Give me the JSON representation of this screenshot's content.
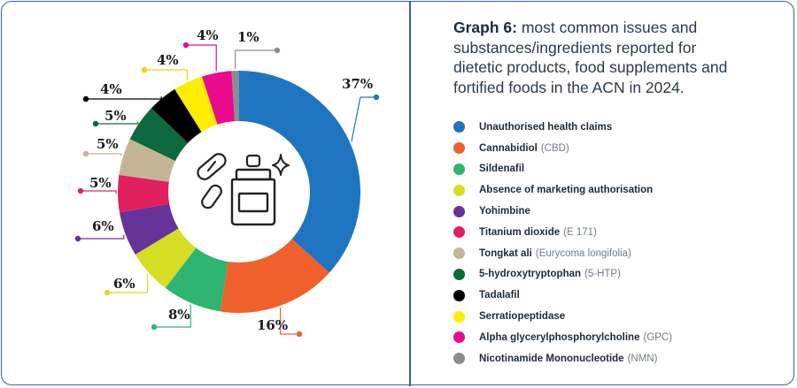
{
  "title": {
    "bold": "Graph 6:",
    "rest": "most common issues and substances/ingredients reported for dietetic products, food supplements and fortified foods in the ACN in 2024."
  },
  "icons": [
    "pills-icon",
    "jar-icon",
    "sparkle-icon"
  ],
  "chart_data": {
    "type": "pie",
    "donut": true,
    "categories": [
      "Unauthorised health claims",
      "Cannabidiol",
      "Sildenafil",
      "Absence of marketing authorisation",
      "Yohimbine",
      "Titanium dioxide",
      "Tongkat ali",
      "5-hydroxytryptophan",
      "Tadalafil",
      "Serratiopeptidase",
      "Alpha glycerylphosphorylcholine",
      "Nicotinamide Mononucleotide"
    ],
    "notes": [
      "",
      "(CBD)",
      "",
      "",
      "",
      "(E 171)",
      "(Eurycoma longifolia)",
      "(5-HTP)",
      "",
      "",
      "(GPC)",
      "(NMN)"
    ],
    "values": [
      37,
      16,
      8,
      6,
      6,
      5,
      5,
      5,
      4,
      4,
      4,
      1
    ],
    "labels": [
      "37%",
      "16%",
      "8%",
      "6%",
      "6%",
      "5%",
      "5%",
      "5%",
      "4%",
      "4%",
      "4%",
      "1%"
    ],
    "colors": [
      "#1f74bf",
      "#f0602a",
      "#2fb471",
      "#d5dd25",
      "#66339a",
      "#e3205f",
      "#c4b597",
      "#0c6a3c",
      "#000000",
      "#ffed00",
      "#ea0a8d",
      "#8a8d90"
    ],
    "legend_position": "right"
  }
}
